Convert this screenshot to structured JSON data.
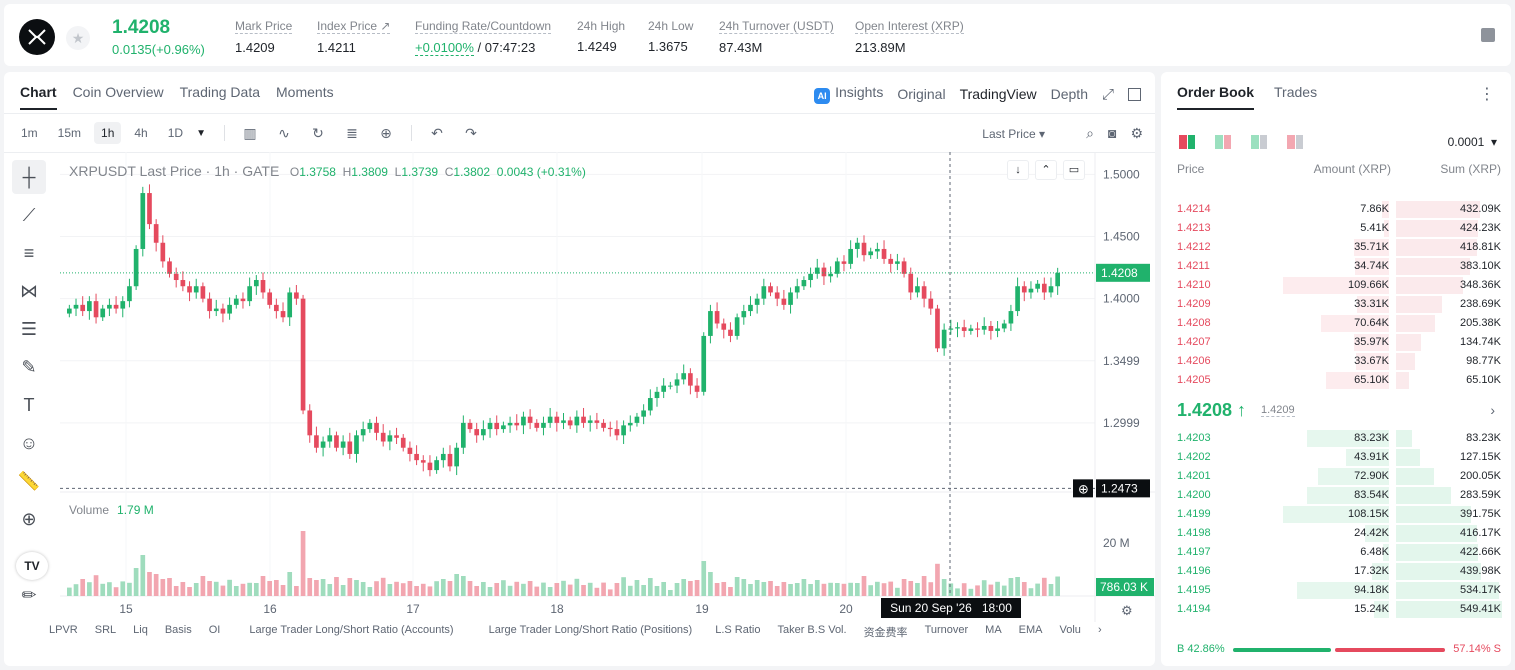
{
  "header": {
    "last_price": "1.4208",
    "change": "0.0135(+0.96%)",
    "stats": [
      {
        "label": "Mark Price",
        "value": "1.4209"
      },
      {
        "label": "Index Price ↗",
        "value": "1.4211"
      },
      {
        "label": "Funding Rate/Countdown",
        "value_green": "+0.0100%",
        "value": " / 07:47:23"
      },
      {
        "label": "24h High",
        "value": "1.4249"
      },
      {
        "label": "24h Low",
        "value": "1.3675"
      },
      {
        "label": "24h Turnover (USDT)",
        "value": "87.43M"
      },
      {
        "label": "Open Interest (XRP)",
        "value": "213.89M"
      }
    ]
  },
  "chart_tabs": [
    "Chart",
    "Coin Overview",
    "Trading Data",
    "Moments"
  ],
  "view_tabs": {
    "insights": "Insights",
    "original": "Original",
    "tradingview": "TradingView",
    "depth": "Depth"
  },
  "timeframes": [
    "1m",
    "15m",
    "1h",
    "4h",
    "1D"
  ],
  "price_source": "Last Price",
  "legend": {
    "symbol": "XRPUSDT Last Price · 1h · GATE",
    "o_label": "O",
    "o": "1.3758",
    "h_label": "H",
    "h": "1.3809",
    "l_label": "L",
    "l": "1.3739",
    "c_label": "C",
    "c": "1.3802",
    "chg": "0.0043 (+0.31%)"
  },
  "volume_legend": {
    "label": "Volume",
    "value": "1.79 M"
  },
  "chart_data": {
    "type": "candlestick",
    "y_ticks": [
      "1.5000",
      "1.4500",
      "1.4000",
      "1.3499",
      "1.2999"
    ],
    "ylim": [
      1.25,
      1.51
    ],
    "x_ticks": [
      "15",
      "16",
      "17",
      "18",
      "19",
      "20"
    ],
    "volume_tick": "20 M",
    "current_price_tag": "1.4208",
    "crosshair_price_tag": "1.2473",
    "volume_tag": "786.03 K",
    "crosshair_time": "Sun 20 Sep '26",
    "crosshair_hour": "18:00",
    "close_series": [
      1.392,
      1.395,
      1.39,
      1.398,
      1.385,
      1.392,
      1.395,
      1.392,
      1.398,
      1.41,
      1.44,
      1.485,
      1.46,
      1.445,
      1.43,
      1.42,
      1.415,
      1.41,
      1.405,
      1.41,
      1.4,
      1.39,
      1.392,
      1.388,
      1.395,
      1.4,
      1.398,
      1.41,
      1.415,
      1.405,
      1.395,
      1.39,
      1.385,
      1.405,
      1.4,
      1.31,
      1.29,
      1.28,
      1.285,
      1.29,
      1.28,
      1.285,
      1.275,
      1.29,
      1.295,
      1.3,
      1.292,
      1.285,
      1.29,
      1.288,
      1.28,
      1.275,
      1.27,
      1.268,
      1.262,
      1.27,
      1.275,
      1.265,
      1.28,
      1.3,
      1.295,
      1.29,
      1.295,
      1.3,
      1.295,
      1.298,
      1.3,
      1.298,
      1.305,
      1.3,
      1.296,
      1.3,
      1.305,
      1.3,
      1.302,
      1.298,
      1.305,
      1.3,
      1.302,
      1.3,
      1.296,
      1.295,
      1.29,
      1.298,
      1.3,
      1.305,
      1.31,
      1.32,
      1.325,
      1.33,
      1.33,
      1.335,
      1.34,
      1.33,
      1.325,
      1.37,
      1.39,
      1.38,
      1.375,
      1.37,
      1.385,
      1.39,
      1.395,
      1.4,
      1.41,
      1.405,
      1.4,
      1.395,
      1.405,
      1.41,
      1.415,
      1.42,
      1.425,
      1.418,
      1.42,
      1.43,
      1.428,
      1.44,
      1.445,
      1.435,
      1.438,
      1.44,
      1.432,
      1.428,
      1.43,
      1.42,
      1.405,
      1.41,
      1.4,
      1.392,
      1.36,
      1.375,
      1.376,
      1.377,
      1.374,
      1.376,
      1.375,
      1.378,
      1.374,
      1.376,
      1.38,
      1.39,
      1.41,
      1.405,
      1.408,
      1.412,
      1.405,
      1.41,
      1.4208
    ]
  },
  "indicators": [
    "LPVR",
    "SRL",
    "Liq",
    "Basis",
    "OI",
    "Large Trader Long/Short Ratio (Accounts)",
    "Large Trader Long/Short Ratio (Positions)",
    "L.S Ratio",
    "Taker B.S Vol.",
    "资金费率",
    "Turnover",
    "MA",
    "EMA",
    "Volu"
  ],
  "orderbook": {
    "tabs": [
      "Order Book",
      "Trades"
    ],
    "precision": "0.0001",
    "headers": {
      "price": "Price",
      "amount": "Amount (XRP)",
      "sum": "Sum (XRP)"
    },
    "asks": [
      {
        "price": "1.4214",
        "amount": "7.86K",
        "sum": "432.09K",
        "depth": 0.79,
        "amt_frac": 0.07
      },
      {
        "price": "1.4213",
        "amount": "5.41K",
        "sum": "424.23K",
        "depth": 0.77,
        "amt_frac": 0.05
      },
      {
        "price": "1.4212",
        "amount": "35.71K",
        "sum": "418.81K",
        "depth": 0.76,
        "amt_frac": 0.33
      },
      {
        "price": "1.4211",
        "amount": "34.74K",
        "sum": "383.10K",
        "depth": 0.7,
        "amt_frac": 0.32
      },
      {
        "price": "1.4210",
        "amount": "109.66K",
        "sum": "348.36K",
        "depth": 0.63,
        "amt_frac": 1.0
      },
      {
        "price": "1.4209",
        "amount": "33.31K",
        "sum": "238.69K",
        "depth": 0.43,
        "amt_frac": 0.3
      },
      {
        "price": "1.4208",
        "amount": "70.64K",
        "sum": "205.38K",
        "depth": 0.37,
        "amt_frac": 0.64
      },
      {
        "price": "1.4207",
        "amount": "35.97K",
        "sum": "134.74K",
        "depth": 0.24,
        "amt_frac": 0.33
      },
      {
        "price": "1.4206",
        "amount": "33.67K",
        "sum": "98.77K",
        "depth": 0.18,
        "amt_frac": 0.31
      },
      {
        "price": "1.4205",
        "amount": "65.10K",
        "sum": "65.10K",
        "depth": 0.12,
        "amt_frac": 0.59
      }
    ],
    "mid_price": "1.4208 ↑",
    "mark_price": "1.4209",
    "bids": [
      {
        "price": "1.4203",
        "amount": "83.23K",
        "sum": "83.23K",
        "depth": 0.15,
        "amt_frac": 0.77
      },
      {
        "price": "1.4202",
        "amount": "43.91K",
        "sum": "127.15K",
        "depth": 0.23,
        "amt_frac": 0.41
      },
      {
        "price": "1.4201",
        "amount": "72.90K",
        "sum": "200.05K",
        "depth": 0.36,
        "amt_frac": 0.67
      },
      {
        "price": "1.4200",
        "amount": "83.54K",
        "sum": "283.59K",
        "depth": 0.52,
        "amt_frac": 0.77
      },
      {
        "price": "1.4199",
        "amount": "108.15K",
        "sum": "391.75K",
        "depth": 0.71,
        "amt_frac": 1.0
      },
      {
        "price": "1.4198",
        "amount": "24.42K",
        "sum": "416.17K",
        "depth": 0.76,
        "amt_frac": 0.23
      },
      {
        "price": "1.4197",
        "amount": "6.48K",
        "sum": "422.66K",
        "depth": 0.77,
        "amt_frac": 0.06
      },
      {
        "price": "1.4196",
        "amount": "17.32K",
        "sum": "439.98K",
        "depth": 0.8,
        "amt_frac": 0.16
      },
      {
        "price": "1.4195",
        "amount": "94.18K",
        "sum": "534.17K",
        "depth": 0.97,
        "amt_frac": 0.87
      },
      {
        "price": "1.4194",
        "amount": "15.24K",
        "sum": "549.41K",
        "depth": 1.0,
        "amt_frac": 0.14
      }
    ],
    "buy_ratio": "B 42.86%",
    "sell_ratio": "57.14% S"
  },
  "colors": {
    "up": "#20b26c",
    "down": "#e54a5e"
  }
}
